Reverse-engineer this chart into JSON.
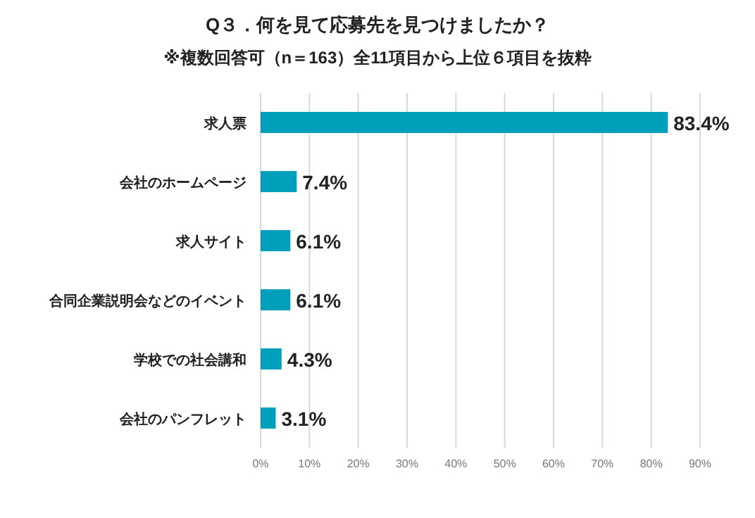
{
  "chart_data": {
    "type": "bar",
    "orientation": "horizontal",
    "title": "Q３．何を見て応募先を見つけましたか？",
    "subtitle": "※複数回答可（n＝163）全11項目から上位６項目を抜粋",
    "categories": [
      "求人票",
      "会社のホームページ",
      "求人サイト",
      "合同企業説明会などのイベント",
      "学校での社会講和",
      "会社のパンフレット"
    ],
    "values": [
      83.4,
      7.4,
      6.1,
      6.1,
      4.3,
      3.1
    ],
    "value_labels": [
      "83.4%",
      "7.4%",
      "6.1%",
      "6.1%",
      "4.3%",
      "3.1%"
    ],
    "color": "#00a0bc",
    "xlim": [
      0,
      90
    ],
    "xticks": [
      {
        "value": 0,
        "label": "0%"
      },
      {
        "value": 10,
        "label": "10%"
      },
      {
        "value": 20,
        "label": "20%"
      },
      {
        "value": 30,
        "label": "30%"
      },
      {
        "value": 40,
        "label": "40%"
      },
      {
        "value": 50,
        "label": "50%"
      },
      {
        "value": 60,
        "label": "60%"
      },
      {
        "value": 70,
        "label": "70%"
      },
      {
        "value": 80,
        "label": "80%"
      },
      {
        "value": 90,
        "label": "90%"
      }
    ],
    "grid": "x"
  }
}
